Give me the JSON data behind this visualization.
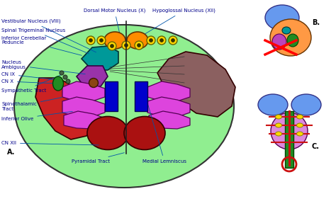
{
  "bg_color": "#ffffff",
  "label_color": "#00008B",
  "letter_A": "A.",
  "letter_B": "B.",
  "letter_C": "C.",
  "green_body": "#90EE90",
  "red_color": "#CC2222",
  "brown_color": "#8B6060",
  "teal_color": "#009999",
  "purple_color": "#9933AA",
  "orange_color": "#FF8C00",
  "yellow_color": "#FFD700",
  "blue_color": "#0000CC",
  "magenta_color": "#DD44DD",
  "darkred_color": "#AA1111",
  "brown_dot": "#8B4513",
  "green_blob": "#228B22"
}
